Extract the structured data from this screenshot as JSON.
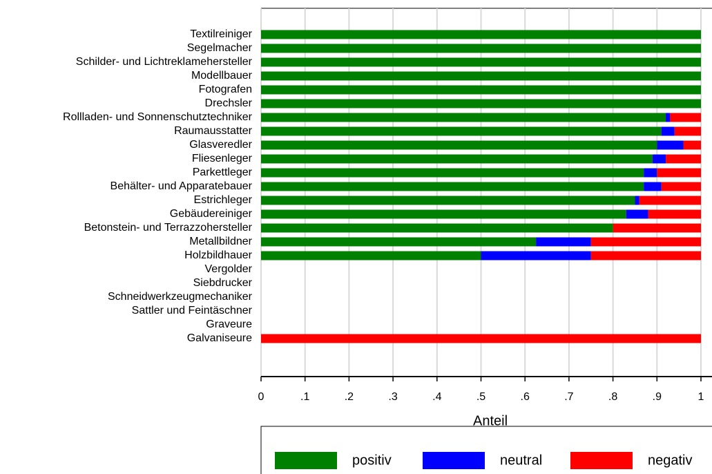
{
  "chart_data": {
    "type": "stacked-bar-horizontal",
    "x_label": "Anteil",
    "categories": [
      "Textilreiniger",
      "Segelmacher",
      "Schilder- und Lichtreklamehersteller",
      "Modellbauer",
      "Fotografen",
      "Drechsler",
      "Rollladen- und Sonnenschutztechniker",
      "Raumausstatter",
      "Glasveredler",
      "Fliesenleger",
      "Parkettleger",
      "Behälter- und Apparatebauer",
      "Estrichleger",
      "Gebäudereiniger",
      "Betonstein- und Terrazzohersteller",
      "Metallbildner",
      "Holzbildhauer",
      "Vergolder",
      "Siebdrucker",
      "Schneidwerkzeugmechaniker",
      "Sattler und Feintäschner",
      "Graveure",
      "Galvaniseure"
    ],
    "series": [
      {
        "name": "positiv",
        "color": "#008000",
        "values": [
          1,
          1,
          1,
          1,
          1,
          1,
          0.92,
          0.91,
          0.9,
          0.89,
          0.87,
          0.87,
          0.85,
          0.83,
          0.8,
          0.625,
          0.5,
          0,
          0,
          0,
          0,
          0,
          0
        ]
      },
      {
        "name": "neutral",
        "color": "#0000ff",
        "values": [
          0,
          0,
          0,
          0,
          0,
          0,
          0.01,
          0.03,
          0.06,
          0.03,
          0.03,
          0.04,
          0.01,
          0.05,
          0,
          0.125,
          0.25,
          0,
          0,
          0,
          0,
          0,
          0
        ]
      },
      {
        "name": "negativ",
        "color": "#ff0000",
        "values": [
          0,
          0,
          0,
          0,
          0,
          0,
          0.07,
          0.06,
          0.04,
          0.08,
          0.1,
          0.09,
          0.14,
          0.12,
          0.2,
          0.25,
          0.25,
          0,
          0,
          0,
          0,
          0,
          1
        ]
      }
    ],
    "xlim": [
      0,
      1
    ],
    "xticks": [
      0,
      {
        "value": 0.1,
        "label": ".1"
      },
      {
        "value": 0.2,
        "label": ".2"
      },
      {
        "value": 0.3,
        "label": ".3"
      },
      {
        "value": 0.4,
        "label": ".4"
      },
      {
        "value": 0.5,
        "label": ".5"
      },
      {
        "value": 0.6,
        "label": ".6"
      },
      {
        "value": 0.7,
        "label": ".7"
      },
      {
        "value": 0.8,
        "label": ".8"
      },
      {
        "value": 0.9,
        "label": ".9"
      },
      1
    ],
    "grid": true,
    "legend": "bottom"
  }
}
